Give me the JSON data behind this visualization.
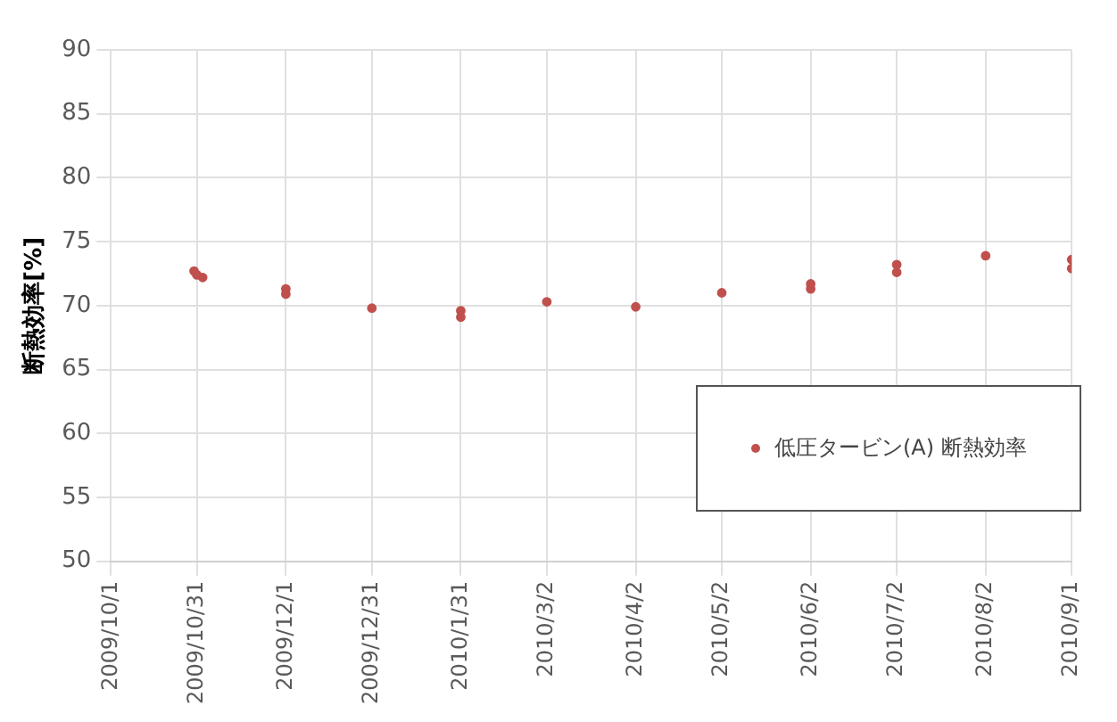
{
  "chart_data": {
    "type": "scatter",
    "ylabel": "断熱効率[%]",
    "xlim": [
      "2009-10-01",
      "2010-09-01"
    ],
    "xticks": [
      {
        "value": "2009-10-01",
        "label": "2009/10/1"
      },
      {
        "value": "2009-10-31",
        "label": "2009/10/31"
      },
      {
        "value": "2009-12-01",
        "label": "2009/12/1"
      },
      {
        "value": "2009-12-31",
        "label": "2009/12/31"
      },
      {
        "value": "2010-01-31",
        "label": "2010/1/31"
      },
      {
        "value": "2010-03-02",
        "label": "2010/3/2"
      },
      {
        "value": "2010-04-02",
        "label": "2010/4/2"
      },
      {
        "value": "2010-05-02",
        "label": "2010/5/2"
      },
      {
        "value": "2010-06-02",
        "label": "2010/6/2"
      },
      {
        "value": "2010-07-02",
        "label": "2010/7/2"
      },
      {
        "value": "2010-08-02",
        "label": "2010/8/2"
      },
      {
        "value": "2010-09-01",
        "label": "2010/9/1"
      }
    ],
    "ylim": [
      50,
      90
    ],
    "yticks": [
      50,
      55,
      60,
      65,
      70,
      75,
      80,
      85,
      90
    ],
    "grid": true,
    "legend": "bottom right",
    "marker": "circle",
    "series": [
      {
        "name": "低圧タービン(A) 断熱効率",
        "color": "#c0504d",
        "x": [
          "2009-10-30",
          "2009-10-31",
          "2009-11-02",
          "2009-12-01",
          "2009-12-01",
          "2009-12-31",
          "2010-01-31",
          "2010-01-31",
          "2010-03-02",
          "2010-04-02",
          "2010-05-02",
          "2010-06-02",
          "2010-06-02",
          "2010-07-02",
          "2010-07-02",
          "2010-08-02",
          "2010-09-01",
          "2010-09-01"
        ],
        "values": [
          72.7,
          72.4,
          72.2,
          71.3,
          70.9,
          69.8,
          69.6,
          69.1,
          70.3,
          69.9,
          71.0,
          71.7,
          71.3,
          73.2,
          72.6,
          73.9,
          73.6,
          72.9
        ]
      }
    ]
  }
}
